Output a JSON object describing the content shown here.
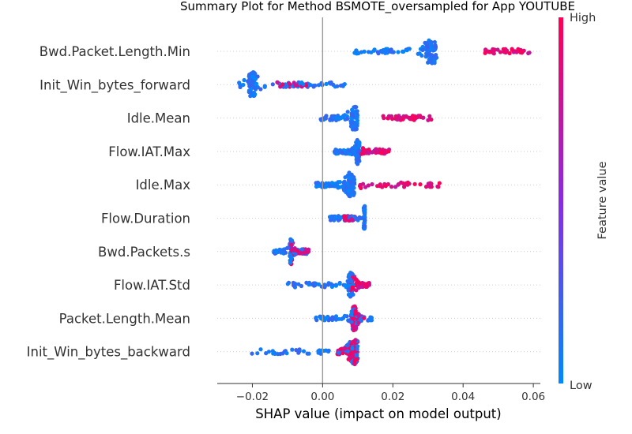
{
  "chart_data": {
    "type": "scatter",
    "title": "Summary Plot for Method BSMOTE_oversampled for App YOUTUBE",
    "xlabel": "SHAP value (impact on model output)",
    "xlim": [
      -0.03,
      0.062
    ],
    "xticks": [
      -0.02,
      0.0,
      0.02,
      0.04,
      0.06
    ],
    "xtick_labels": [
      "−0.02",
      "0.00",
      "0.02",
      "0.04",
      "0.06"
    ],
    "grid": false,
    "colorbar": {
      "label": "Feature value",
      "high_label": "High",
      "low_label": "Low",
      "low_color": "#008afb",
      "high_color": "#ff0052"
    },
    "features": [
      {
        "name": "Bwd.Packet.Length.Min",
        "min": 0.009,
        "max": 0.059,
        "peak": 0.031,
        "low_range": [
          0.009,
          0.031
        ],
        "high_range": [
          0.046,
          0.059
        ]
      },
      {
        "name": "Init_Win_bytes_forward",
        "min": -0.026,
        "max": 0.007,
        "peak": -0.02,
        "low_range": [
          -0.026,
          0.007
        ],
        "high_range": [
          -0.013,
          -0.004
        ]
      },
      {
        "name": "Idle.Mean",
        "min": -0.001,
        "max": 0.031,
        "peak": 0.009,
        "low_range": [
          -0.001,
          0.01
        ],
        "high_range": [
          0.017,
          0.031
        ]
      },
      {
        "name": "Flow.IAT.Max",
        "min": 0.003,
        "max": 0.019,
        "peak": 0.01,
        "low_range": [
          0.003,
          0.01
        ],
        "high_range": [
          0.011,
          0.019
        ]
      },
      {
        "name": "Idle.Max",
        "min": -0.002,
        "max": 0.034,
        "peak": 0.008,
        "low_range": [
          -0.002,
          0.008
        ],
        "high_range": [
          0.01,
          0.034
        ]
      },
      {
        "name": "Flow.Duration",
        "min": 0.002,
        "max": 0.012,
        "peak": 0.012,
        "low_range": [
          0.002,
          0.012
        ],
        "high_range": [
          0.006,
          0.009
        ]
      },
      {
        "name": "Bwd.Packets.s",
        "min": -0.014,
        "max": -0.002,
        "peak": -0.009,
        "low_range": [
          -0.014,
          -0.004
        ],
        "high_range": [
          -0.009,
          -0.004
        ]
      },
      {
        "name": "Flow.IAT.Std",
        "min": -0.01,
        "max": 0.014,
        "peak": 0.008,
        "low_range": [
          -0.01,
          0.009
        ],
        "high_range": [
          0.008,
          0.014
        ]
      },
      {
        "name": "Packet.Length.Mean",
        "min": -0.002,
        "max": 0.015,
        "peak": 0.009,
        "low_range": [
          -0.002,
          0.015
        ],
        "high_range": [
          0.008,
          0.012
        ]
      },
      {
        "name": "Init_Win_bytes_backward",
        "min": -0.021,
        "max": 0.015,
        "peak": 0.009,
        "low_range": [
          -0.021,
          0.01
        ],
        "high_range": [
          0.004,
          0.01
        ]
      }
    ]
  }
}
